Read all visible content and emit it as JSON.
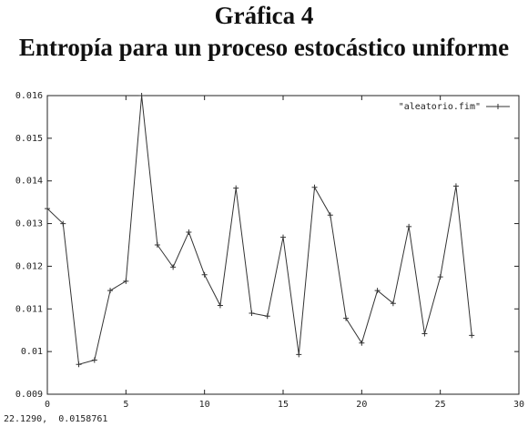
{
  "heading": {
    "line1": "Gráfica 4",
    "line2": "Entropía para un proceso estocástico uniforme"
  },
  "coordinate_readout": "22.1290,  0.0158761",
  "chart_data": {
    "type": "line",
    "title": "",
    "xlabel": "",
    "ylabel": "",
    "xlim": [
      0,
      30
    ],
    "ylim": [
      0.009,
      0.016
    ],
    "xticks": [
      "0",
      "5",
      "10",
      "15",
      "20",
      "25",
      "30"
    ],
    "yticks": [
      "0.009",
      "0.01",
      "0.011",
      "0.012",
      "0.013",
      "0.014",
      "0.015",
      "0.016"
    ],
    "grid": false,
    "legend_position": "top-right",
    "series": [
      {
        "name": "\"aleatorio.fim\"",
        "color": "#333333",
        "x": [
          0,
          1,
          2,
          3,
          4,
          5,
          6,
          7,
          8,
          9,
          10,
          11,
          12,
          13,
          14,
          15,
          16,
          17,
          18,
          19,
          20,
          21,
          22,
          23,
          24,
          25,
          26,
          27
        ],
        "values": [
          0.01335,
          0.013,
          0.0097,
          0.0098,
          0.01143,
          0.01165,
          0.016,
          0.0125,
          0.01198,
          0.0128,
          0.0118,
          0.01108,
          0.01383,
          0.0109,
          0.01083,
          0.01268,
          0.00993,
          0.01385,
          0.0132,
          0.01078,
          0.0102,
          0.01143,
          0.01113,
          0.01293,
          0.01042,
          0.01175,
          0.01388,
          0.01038
        ]
      }
    ]
  }
}
